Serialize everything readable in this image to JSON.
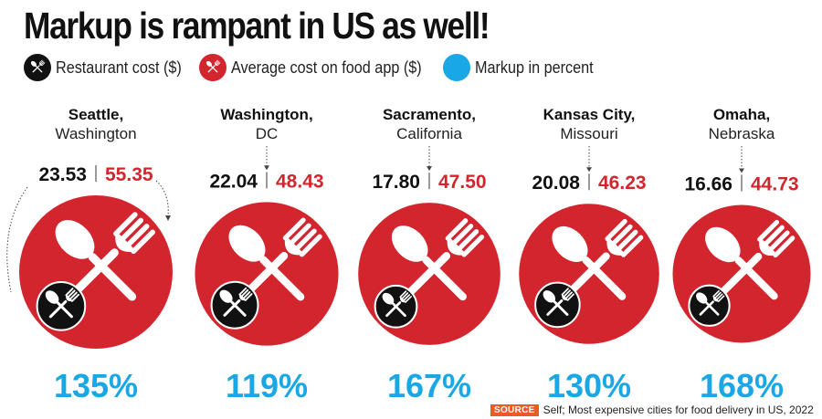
{
  "title": "Markup is rampant in US as well!",
  "legend": {
    "restaurant": "Restaurant cost ($)",
    "app": "Average cost on food app ($)",
    "markup": "Markup in percent"
  },
  "colors": {
    "restaurant": "#111111",
    "app": "#d3252e",
    "markup": "#1aa7e6",
    "source_tag": "#ef5a24"
  },
  "icons": [
    "fork-spoon-icon"
  ],
  "source": {
    "tag": "SOURCE",
    "text": "Self; Most expensive cities for food delivery in US, 2022"
  },
  "chart_data": {
    "type": "bubble",
    "title": "Markup is rampant in US as well!",
    "categories": [
      {
        "city": "Seattle,",
        "region": "Washington"
      },
      {
        "city": "Washington,",
        "region": "DC"
      },
      {
        "city": "Sacramento,",
        "region": "California"
      },
      {
        "city": "Kansas City,",
        "region": "Missouri"
      },
      {
        "city": "Omaha,",
        "region": "Nebraska"
      }
    ],
    "series": [
      {
        "name": "Restaurant cost ($)",
        "values": [
          23.53,
          22.04,
          17.8,
          20.08,
          16.66
        ],
        "labels": [
          "23.53",
          "22.04",
          "17.80",
          "20.08",
          "16.66"
        ]
      },
      {
        "name": "Average cost on food app ($)",
        "values": [
          55.35,
          48.43,
          47.5,
          46.23,
          44.73
        ],
        "labels": [
          "55.35",
          "48.43",
          "47.50",
          "46.23",
          "44.73"
        ]
      },
      {
        "name": "Markup in percent",
        "values": [
          135,
          119,
          167,
          130,
          168
        ],
        "labels": [
          "135%",
          "119%",
          "167%",
          "130%",
          "168%"
        ]
      }
    ],
    "legend_position": "top-left",
    "grid": false
  }
}
